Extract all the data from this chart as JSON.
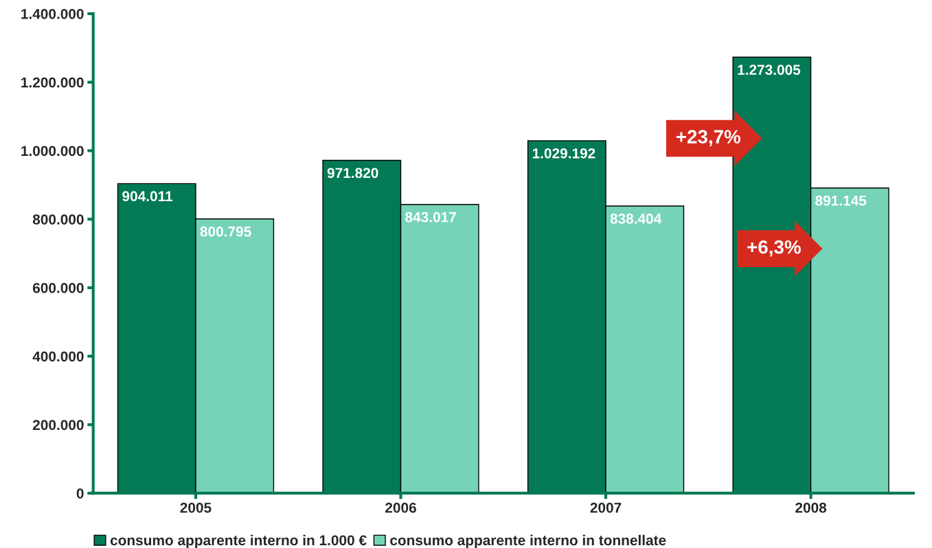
{
  "chart_data": {
    "type": "bar",
    "categories": [
      "2005",
      "2006",
      "2007",
      "2008"
    ],
    "series": [
      {
        "name": "consumo apparente interno in 1.000 €",
        "color": "#037a55",
        "values": [
          904011,
          971820,
          1029192,
          1273005
        ],
        "value_labels": [
          "904.011",
          "971.820",
          "1.029.192",
          "1.273.005"
        ]
      },
      {
        "name": "consumo apparente interno in tonnellate",
        "color": "#76d3b8",
        "values": [
          800795,
          843017,
          838404,
          891145
        ],
        "value_labels": [
          "800.795",
          "843.017",
          "838.404",
          "891.145"
        ]
      }
    ],
    "ylim": [
      0,
      1400000
    ],
    "yticks": [
      {
        "value": 0,
        "label": "0"
      },
      {
        "value": 200000,
        "label": "200.000"
      },
      {
        "value": 400000,
        "label": "400.000"
      },
      {
        "value": 600000,
        "label": "600.000"
      },
      {
        "value": 800000,
        "label": "800.000"
      },
      {
        "value": 1000000,
        "label": "1.000.000"
      },
      {
        "value": 1200000,
        "label": "1.200.000"
      },
      {
        "value": 1400000,
        "label": "1.400.000"
      }
    ],
    "annotations": [
      "+23,7%",
      "+6,3%"
    ],
    "legend": "bottom",
    "grid": false
  }
}
